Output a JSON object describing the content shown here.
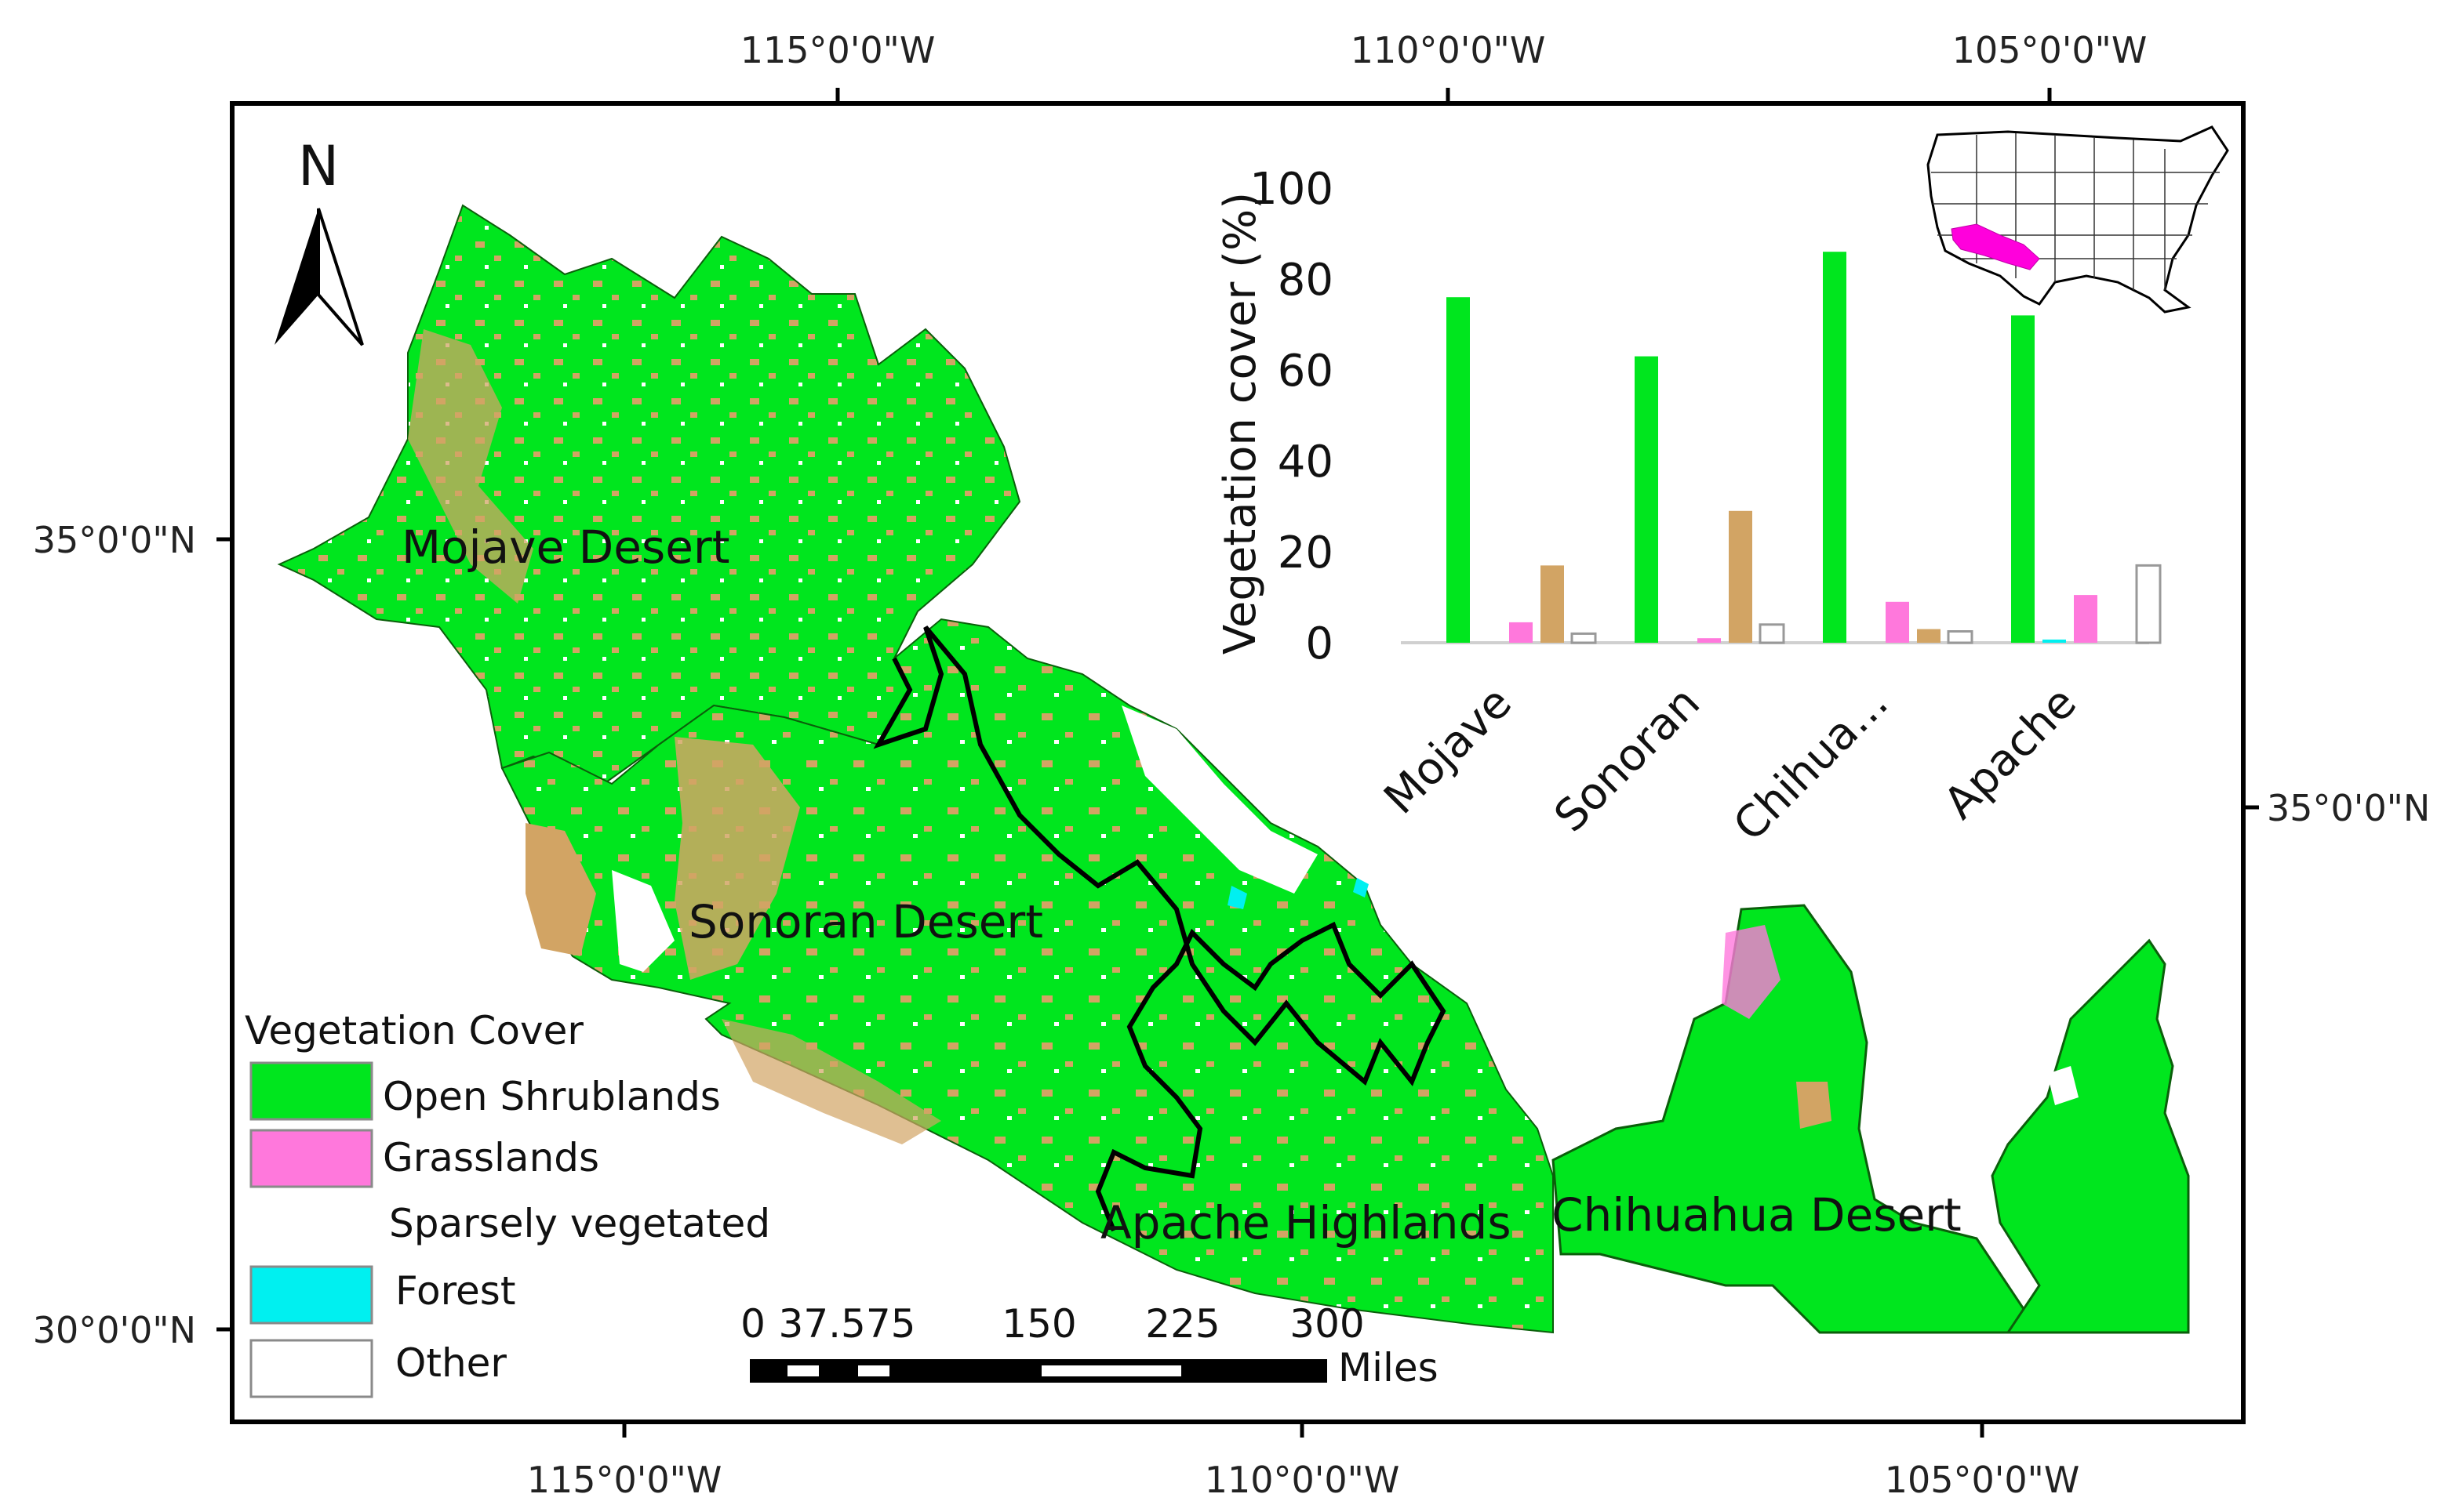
{
  "map": {
    "coords": {
      "top": [
        "115°0'0\"W",
        "110°0'0\"W",
        "105°0'0\"W"
      ],
      "bottom": [
        "115°0'0\"W",
        "110°0'0\"W",
        "105°0'0\"W"
      ],
      "left": [
        "35°0'0\"N",
        "30°0'0\"N"
      ],
      "right": [
        "35°0'0\"N"
      ]
    },
    "north_label": "N",
    "regions": {
      "mojave": "Mojave Desert",
      "sonoran": "Sonoran Desert",
      "apache": "Apache Highlands",
      "chihuahua": "Chihuahua Desert"
    },
    "colors": {
      "open_shrublands": "#00e61e",
      "grasslands": "#ff78dc",
      "sparsely_vegetated": "#ffffff",
      "forest": "#00f0f0",
      "other": "#ffffff",
      "barren": "#d2a464"
    },
    "legend": {
      "title": "Vegetation Cover",
      "items": [
        {
          "label": "Open Shrublands",
          "color": "#00e61e",
          "swatch": true
        },
        {
          "label": "Grasslands",
          "color": "#ff78dc",
          "swatch": true
        },
        {
          "label": "Sparsely vegetated",
          "color": "#ffffff",
          "swatch": false
        },
        {
          "label": "Forest",
          "color": "#00f0f0",
          "swatch": true
        },
        {
          "label": "Other",
          "color": "#ffffff",
          "swatch": true
        }
      ]
    },
    "scale_bar": {
      "labels": [
        "0",
        "37.575",
        "150",
        "225",
        "300"
      ],
      "unit": "Miles"
    }
  },
  "chart_data": {
    "type": "bar",
    "title": "",
    "xlabel": "",
    "ylabel": "Vegetation cover (%)",
    "ylim": [
      0,
      100
    ],
    "yticks": [
      "0",
      "20",
      "40",
      "60",
      "80",
      "100"
    ],
    "categories": [
      "Mojave",
      "Sonoran",
      "Chihua...",
      "Apache"
    ],
    "series": [
      {
        "color": "#00e61e",
        "values": [
          76,
          63,
          86,
          72
        ]
      },
      {
        "color": "#00f0f0",
        "values": [
          0,
          0,
          0,
          0.7
        ]
      },
      {
        "color": "#ff78dc",
        "values": [
          4.5,
          1,
          9,
          10.5
        ]
      },
      {
        "color": "#d2a464",
        "values": [
          17,
          29,
          3,
          0
        ]
      },
      {
        "color": "#ffffff",
        "values": [
          2,
          4,
          2.5,
          17
        ]
      }
    ],
    "grid": false,
    "legend": "none"
  }
}
